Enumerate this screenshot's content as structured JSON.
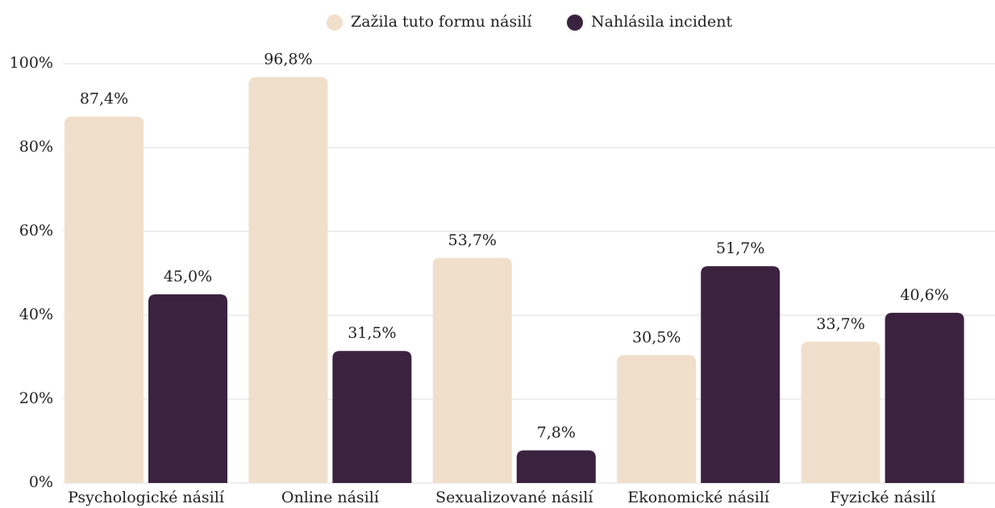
{
  "chart_data": {
    "type": "bar",
    "categories": [
      "Psychologické násilí",
      "Online násilí",
      "Sexualizované násilí",
      "Ekonomické násilí",
      "Fyzické násilí"
    ],
    "series": [
      {
        "name": "Zažila tuto formu násilí",
        "color": "#f0dfcb",
        "values": [
          87.4,
          96.8,
          53.7,
          30.5,
          33.7
        ],
        "value_labels": [
          "87,4%",
          "96,8%",
          "53,7%",
          "30,5%",
          "33,7%"
        ]
      },
      {
        "name": "Nahlásila incident",
        "color": "#3b2340",
        "values": [
          45.0,
          31.5,
          7.8,
          51.7,
          40.6
        ],
        "value_labels": [
          "45,0%",
          "31,5%",
          "7,8%",
          "51,7%",
          "40,6%"
        ]
      }
    ],
    "ylim": [
      0,
      100
    ],
    "yticks": [
      {
        "value": 0,
        "label": "0%"
      },
      {
        "value": 20,
        "label": "20%"
      },
      {
        "value": 40,
        "label": "40%"
      },
      {
        "value": 60,
        "label": "60%"
      },
      {
        "value": 80,
        "label": "80%"
      },
      {
        "value": 100,
        "label": "100%"
      }
    ],
    "grid": true,
    "legend": "top"
  }
}
